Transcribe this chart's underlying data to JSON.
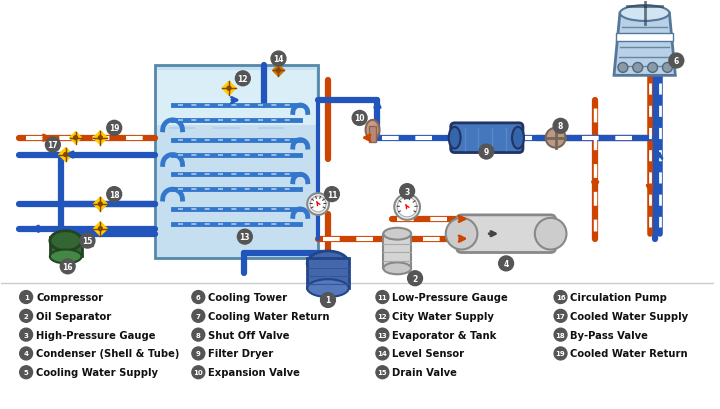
{
  "bg_color": "#f5f5f5",
  "legend_items": [
    [
      "1",
      "Compressor"
    ],
    [
      "2",
      "Oil Separator"
    ],
    [
      "3",
      "High-Pressure Gauge"
    ],
    [
      "4",
      "Condenser (Shell & Tube)"
    ],
    [
      "5",
      "Cooling Water Supply"
    ],
    [
      "6",
      "Cooling Tower"
    ],
    [
      "7",
      "Cooling Water Return"
    ],
    [
      "8",
      "Shut Off Valve"
    ],
    [
      "9",
      "Filter Dryer"
    ],
    [
      "10",
      "Expansion Valve"
    ],
    [
      "11",
      "Low-Pressure Gauge"
    ],
    [
      "12",
      "City Water Supply"
    ],
    [
      "13",
      "Evaporator & Tank"
    ],
    [
      "14",
      "Level Sensor"
    ],
    [
      "15",
      "Drain Valve"
    ],
    [
      "16",
      "Circulation Pump"
    ],
    [
      "17",
      "Cooled Water Supply"
    ],
    [
      "18",
      "By-Pass Valve"
    ],
    [
      "19",
      "Cooled Water Return"
    ]
  ],
  "pipe_red": "#cc4400",
  "pipe_blue": "#2255bb",
  "pipe_red_dark": "#993300",
  "pipe_blue_dark": "#113388",
  "evap_fill": "#c5dff0",
  "evap_border": "#5588aa",
  "coil_color": "#3377cc",
  "legend_font_size": 7.2,
  "legend_bold": true
}
